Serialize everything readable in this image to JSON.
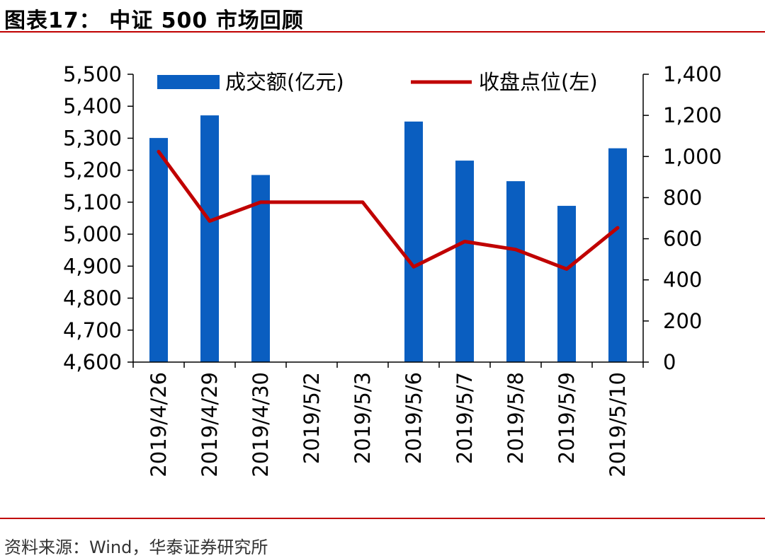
{
  "header": {
    "title": "图表17：  中证 500 市场回顾"
  },
  "footer": {
    "source": "资料来源：Wind，华泰证券研究所"
  },
  "chart_data": {
    "type": "bar+line",
    "categories": [
      "2019/4/26",
      "2019/4/29",
      "2019/4/30",
      "2019/5/2",
      "2019/5/3",
      "2019/5/6",
      "2019/5/7",
      "2019/5/8",
      "2019/5/9",
      "2019/5/10"
    ],
    "series": [
      {
        "name": "成交额(亿元)",
        "type": "bar",
        "axis": "right",
        "values": [
          1090,
          1200,
          910,
          null,
          null,
          1170,
          980,
          880,
          760,
          1040
        ],
        "color": "#0a5ec0"
      },
      {
        "name": "收盘点位(左)",
        "type": "line",
        "axis": "left",
        "values": [
          5258,
          5041,
          5100,
          5100,
          5100,
          4898,
          4977,
          4952,
          4891,
          5020
        ],
        "color": "#c00000"
      }
    ],
    "left_axis": {
      "ylim": [
        4600,
        5500
      ],
      "ticks": [
        "4,600",
        "4,700",
        "4,800",
        "4,900",
        "5,000",
        "5,100",
        "5,200",
        "5,300",
        "5,400",
        "5,500"
      ]
    },
    "right_axis": {
      "ylim": [
        0,
        1400
      ],
      "ticks": [
        "0",
        "200",
        "400",
        "600",
        "800",
        "1,000",
        "1,200",
        "1,400"
      ]
    },
    "legend": {
      "placement": "top"
    }
  }
}
